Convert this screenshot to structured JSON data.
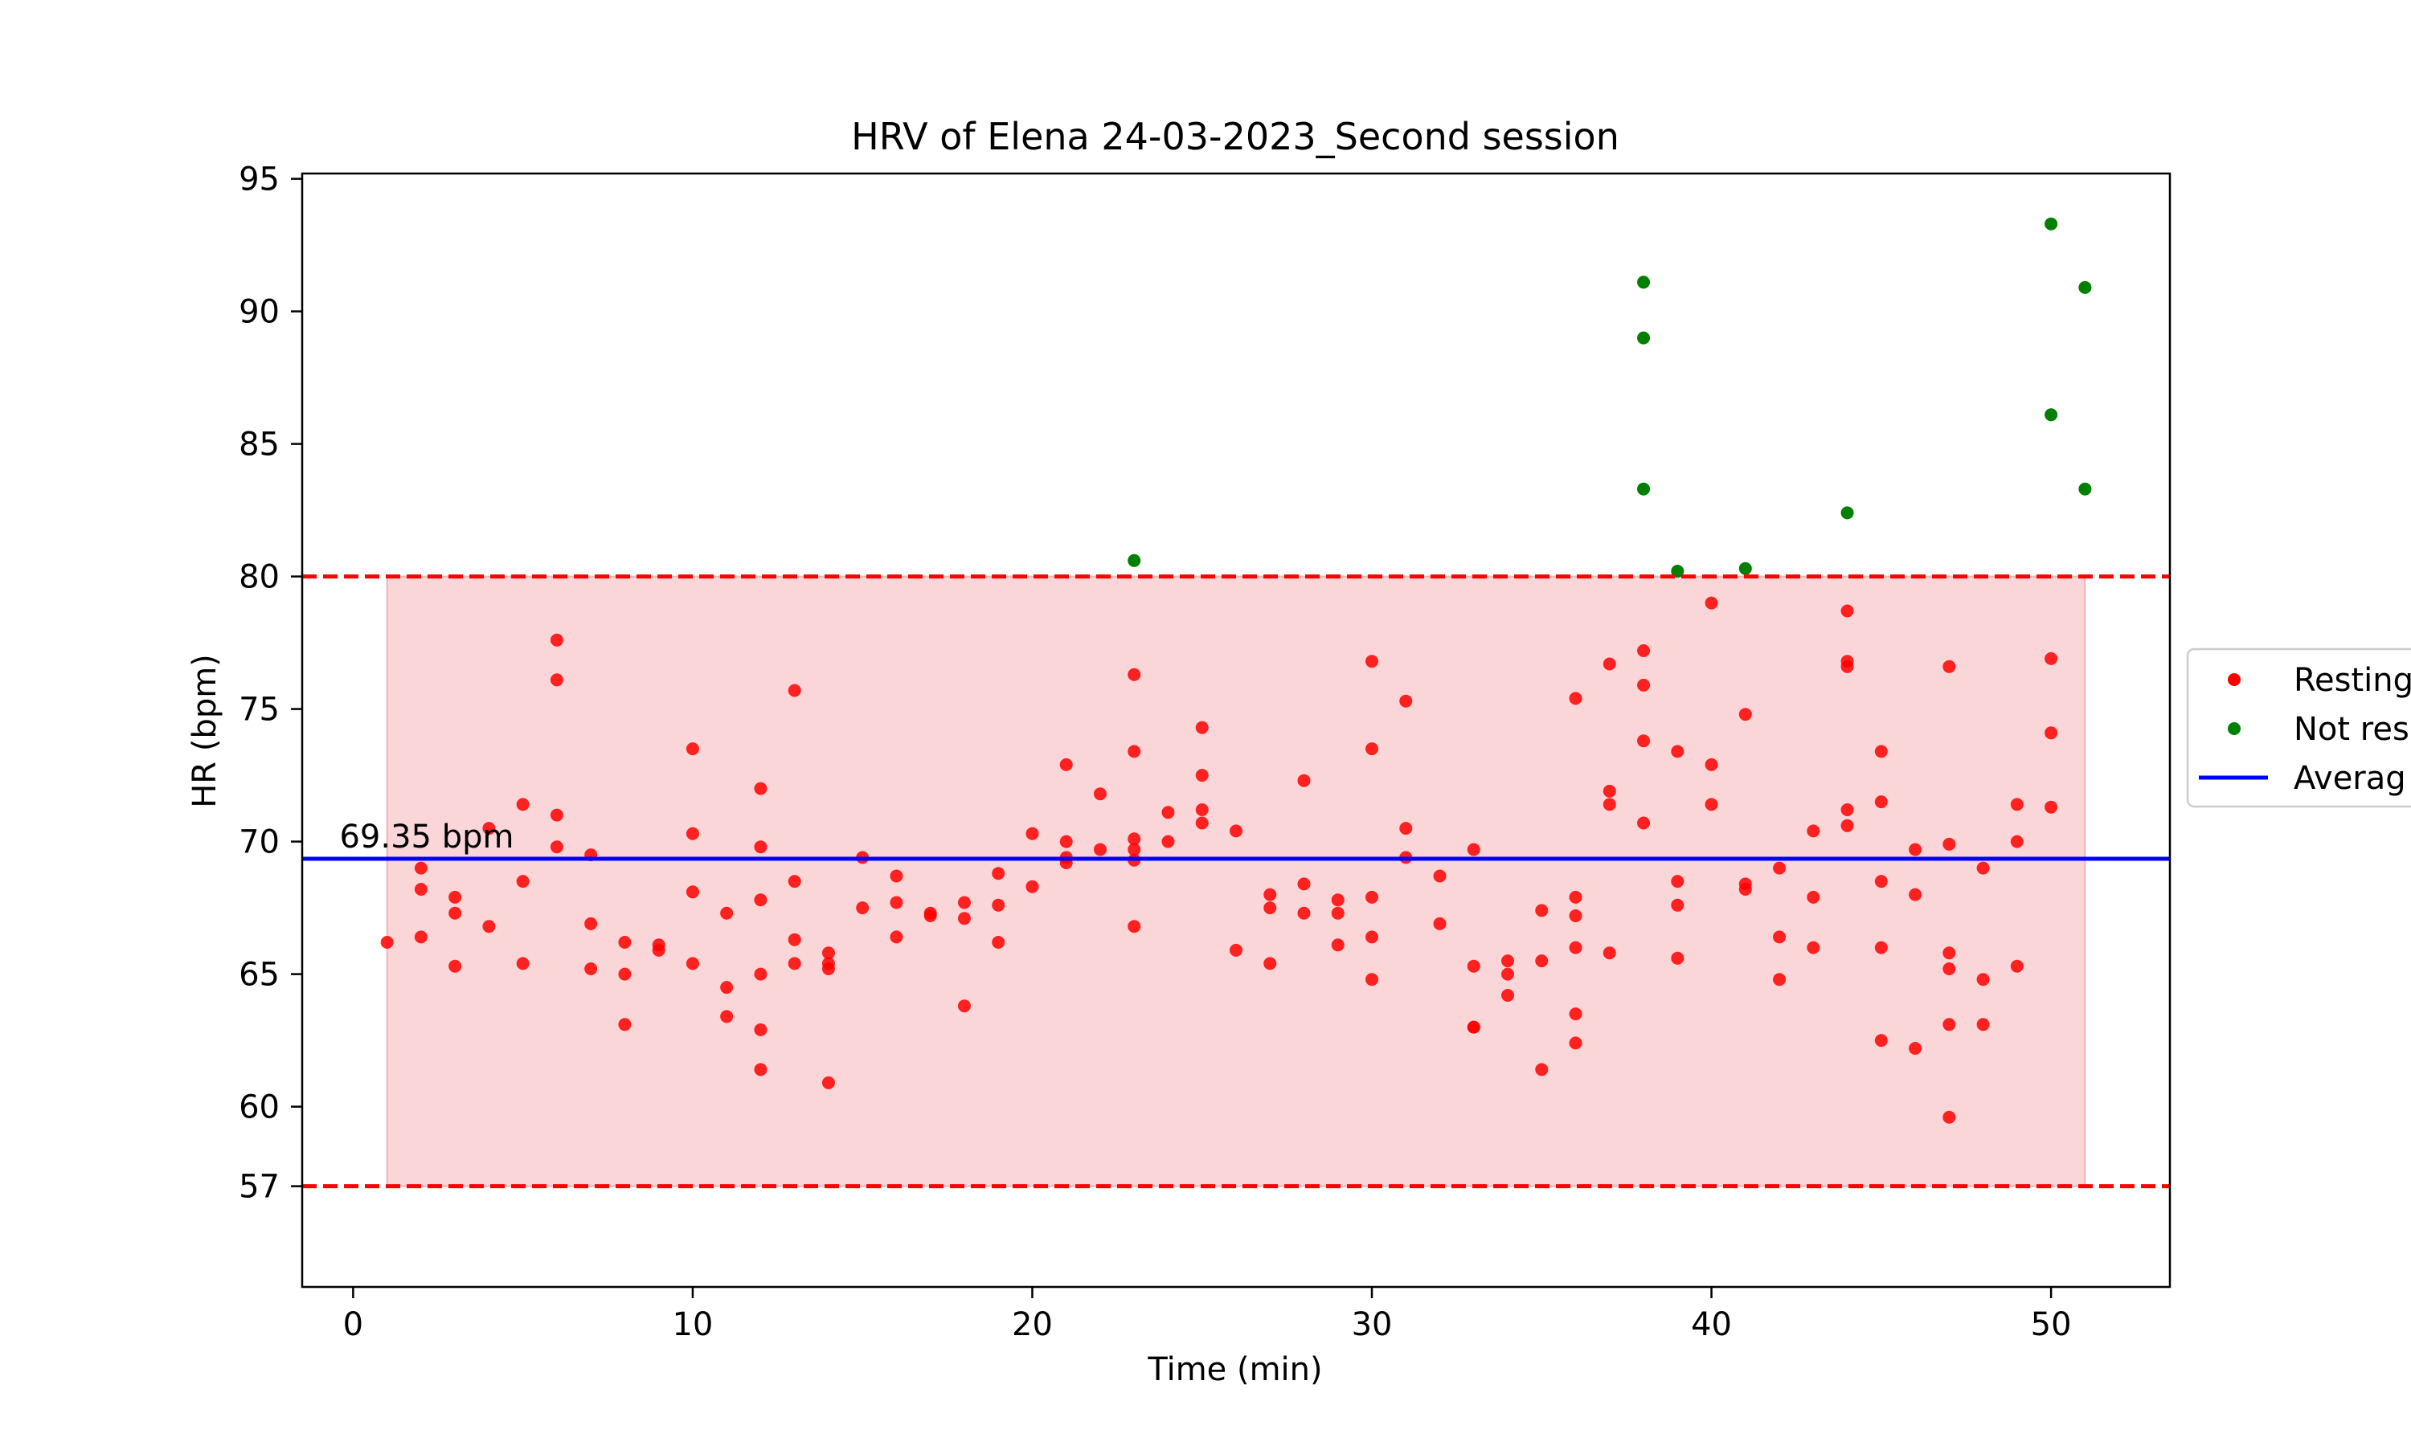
{
  "chart_data": {
    "type": "scatter",
    "title": "HRV of Elena 24-03-2023_Second session",
    "xlabel": "Time (min)",
    "ylabel": "HR (bpm)",
    "xlim": [
      -1.5,
      53.5
    ],
    "ylim": [
      53.2,
      95.2
    ],
    "x_ticks": [
      0,
      10,
      20,
      30,
      40,
      50
    ],
    "y_ticks": [
      57,
      60,
      65,
      70,
      75,
      80,
      85,
      90,
      95
    ],
    "grid": false,
    "legend_position": "right (outside, cropped)",
    "colors": {
      "resting": "#ff0000",
      "not_resting": "#008000",
      "average": "#0000ff",
      "band_fill": "#f5b5b8",
      "threshold": "#ff0000"
    },
    "average": {
      "value": 69.35,
      "label": "69.35 bpm"
    },
    "threshold_upper": 80,
    "threshold_lower": 57,
    "shaded_band": {
      "x_start": 1,
      "x_end": 51,
      "y_low": 57,
      "y_high": 80
    },
    "legend": [
      "Resting",
      "Not res",
      "Averag"
    ],
    "series": [
      {
        "name": "Resting",
        "points": [
          [
            1,
            66.2
          ],
          [
            2,
            69.0
          ],
          [
            2,
            68.2
          ],
          [
            2,
            66.4
          ],
          [
            3,
            67.9
          ],
          [
            3,
            67.3
          ],
          [
            3,
            65.3
          ],
          [
            4,
            70.5
          ],
          [
            4,
            66.8
          ],
          [
            5,
            71.4
          ],
          [
            5,
            68.5
          ],
          [
            5,
            65.4
          ],
          [
            6,
            77.6
          ],
          [
            6,
            76.1
          ],
          [
            6,
            71.0
          ],
          [
            6,
            69.8
          ],
          [
            7,
            69.5
          ],
          [
            7,
            66.9
          ],
          [
            7,
            65.2
          ],
          [
            8,
            66.2
          ],
          [
            8,
            65.0
          ],
          [
            8,
            63.1
          ],
          [
            9,
            66.1
          ],
          [
            9,
            65.9
          ],
          [
            10,
            73.5
          ],
          [
            10,
            70.3
          ],
          [
            10,
            68.1
          ],
          [
            10,
            65.4
          ],
          [
            11,
            67.3
          ],
          [
            11,
            64.5
          ],
          [
            11,
            63.4
          ],
          [
            12,
            72.0
          ],
          [
            12,
            69.8
          ],
          [
            12,
            67.8
          ],
          [
            12,
            65.0
          ],
          [
            12,
            62.9
          ],
          [
            12,
            61.4
          ],
          [
            13,
            75.7
          ],
          [
            13,
            68.5
          ],
          [
            13,
            66.3
          ],
          [
            13,
            65.4
          ],
          [
            14,
            65.8
          ],
          [
            14,
            65.4
          ],
          [
            14,
            65.2
          ],
          [
            14,
            60.9
          ],
          [
            15,
            69.4
          ],
          [
            15,
            67.5
          ],
          [
            16,
            68.7
          ],
          [
            16,
            67.7
          ],
          [
            16,
            66.4
          ],
          [
            17,
            67.3
          ],
          [
            17,
            67.2
          ],
          [
            18,
            67.7
          ],
          [
            18,
            67.1
          ],
          [
            18,
            63.8
          ],
          [
            19,
            68.8
          ],
          [
            19,
            67.6
          ],
          [
            19,
            66.2
          ],
          [
            20,
            70.3
          ],
          [
            20,
            68.3
          ],
          [
            21,
            72.9
          ],
          [
            21,
            70.0
          ],
          [
            21,
            69.4
          ],
          [
            21,
            69.2
          ],
          [
            22,
            71.8
          ],
          [
            22,
            69.7
          ],
          [
            23,
            76.3
          ],
          [
            23,
            73.4
          ],
          [
            23,
            70.1
          ],
          [
            23,
            69.7
          ],
          [
            23,
            69.3
          ],
          [
            23,
            66.8
          ],
          [
            24,
            71.1
          ],
          [
            24,
            70.0
          ],
          [
            25,
            74.3
          ],
          [
            25,
            72.5
          ],
          [
            25,
            71.2
          ],
          [
            25,
            70.7
          ],
          [
            26,
            70.4
          ],
          [
            26,
            65.9
          ],
          [
            27,
            68.0
          ],
          [
            27,
            67.5
          ],
          [
            27,
            65.4
          ],
          [
            28,
            72.3
          ],
          [
            28,
            68.4
          ],
          [
            28,
            67.3
          ],
          [
            29,
            67.8
          ],
          [
            29,
            67.3
          ],
          [
            29,
            66.1
          ],
          [
            30,
            76.8
          ],
          [
            30,
            73.5
          ],
          [
            30,
            67.9
          ],
          [
            30,
            66.4
          ],
          [
            30,
            64.8
          ],
          [
            31,
            75.3
          ],
          [
            31,
            70.5
          ],
          [
            31,
            69.4
          ],
          [
            32,
            68.7
          ],
          [
            32,
            66.9
          ],
          [
            33,
            69.7
          ],
          [
            33,
            65.3
          ],
          [
            33,
            63.0
          ],
          [
            33,
            63.0
          ],
          [
            34,
            65.5
          ],
          [
            34,
            65.0
          ],
          [
            34,
            64.2
          ],
          [
            35,
            67.4
          ],
          [
            35,
            65.5
          ],
          [
            35,
            61.4
          ],
          [
            36,
            75.4
          ],
          [
            36,
            67.9
          ],
          [
            36,
            67.2
          ],
          [
            36,
            66.0
          ],
          [
            36,
            63.5
          ],
          [
            36,
            62.4
          ],
          [
            37,
            76.7
          ],
          [
            37,
            71.9
          ],
          [
            37,
            71.4
          ],
          [
            37,
            65.8
          ],
          [
            38,
            77.2
          ],
          [
            38,
            75.9
          ],
          [
            38,
            73.8
          ],
          [
            38,
            70.7
          ],
          [
            39,
            73.4
          ],
          [
            39,
            68.5
          ],
          [
            39,
            67.6
          ],
          [
            39,
            65.6
          ],
          [
            40,
            79.0
          ],
          [
            40,
            72.9
          ],
          [
            40,
            71.4
          ],
          [
            41,
            74.8
          ],
          [
            41,
            68.4
          ],
          [
            41,
            68.2
          ],
          [
            42,
            69.0
          ],
          [
            42,
            66.4
          ],
          [
            42,
            64.8
          ],
          [
            43,
            70.4
          ],
          [
            43,
            67.9
          ],
          [
            43,
            66.0
          ],
          [
            44,
            78.7
          ],
          [
            44,
            76.8
          ],
          [
            44,
            76.6
          ],
          [
            44,
            71.2
          ],
          [
            44,
            70.6
          ],
          [
            45,
            73.4
          ],
          [
            45,
            71.5
          ],
          [
            45,
            68.5
          ],
          [
            45,
            66.0
          ],
          [
            45,
            62.5
          ],
          [
            46,
            69.7
          ],
          [
            46,
            68.0
          ],
          [
            46,
            62.2
          ],
          [
            47,
            76.6
          ],
          [
            47,
            69.9
          ],
          [
            47,
            65.8
          ],
          [
            47,
            65.2
          ],
          [
            47,
            63.1
          ],
          [
            47,
            59.6
          ],
          [
            48,
            69.0
          ],
          [
            48,
            64.8
          ],
          [
            48,
            63.1
          ],
          [
            49,
            71.4
          ],
          [
            49,
            70.0
          ],
          [
            49,
            65.3
          ],
          [
            50,
            76.9
          ],
          [
            50,
            74.1
          ],
          [
            50,
            71.3
          ]
        ]
      },
      {
        "name": "Not res",
        "points": [
          [
            23,
            80.6
          ],
          [
            38,
            91.1
          ],
          [
            38,
            89.0
          ],
          [
            38,
            83.3
          ],
          [
            39,
            80.2
          ],
          [
            41,
            80.3
          ],
          [
            44,
            82.4
          ],
          [
            50,
            93.3
          ],
          [
            50,
            86.1
          ],
          [
            51,
            90.9
          ],
          [
            51,
            83.3
          ]
        ]
      }
    ]
  }
}
